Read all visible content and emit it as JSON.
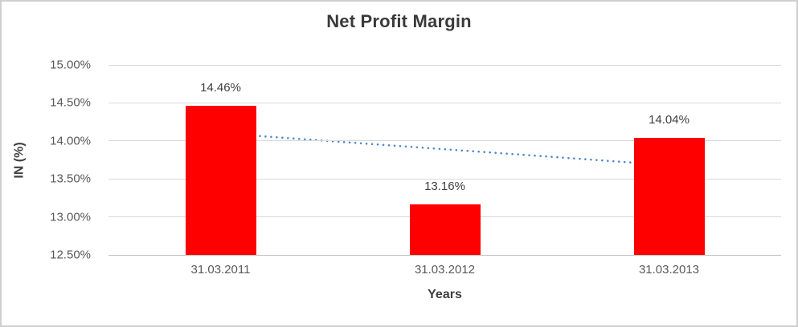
{
  "chart_data": {
    "type": "bar",
    "title": "Net Profit Margin",
    "xlabel": "Years",
    "ylabel": "IN (%)",
    "categories": [
      "31.03.2011",
      "31.03.2012",
      "31.03.2013"
    ],
    "series": [
      {
        "name": "Net Profit Margin",
        "values": [
          14.46,
          13.16,
          14.04
        ],
        "color": "#ff0000"
      }
    ],
    "data_labels": [
      "14.46%",
      "13.16%",
      "14.04%"
    ],
    "y_ticks": [
      {
        "label": "15.00%",
        "value": 15.0
      },
      {
        "label": "14.50%",
        "value": 14.5
      },
      {
        "label": "14.00%",
        "value": 14.0
      },
      {
        "label": "13.50%",
        "value": 13.5
      },
      {
        "label": "13.00%",
        "value": 13.0
      },
      {
        "label": "12.50%",
        "value": 12.5
      }
    ],
    "ylim": [
      12.5,
      15.0
    ],
    "grid": true,
    "legend": "none",
    "trendline": {
      "type": "linear",
      "style": "dotted",
      "color": "#4e88cc",
      "start_value": 14.1,
      "end_value": 13.68
    },
    "colors": {
      "bar": "#ff0000",
      "trendline": "#4e88cc",
      "gridline": "#d9d9d9",
      "axis_line": "#bfbfbf",
      "title_text": "#3a3a3a",
      "tick_text": "#595959",
      "frame_border": "#cfcfcf"
    }
  }
}
